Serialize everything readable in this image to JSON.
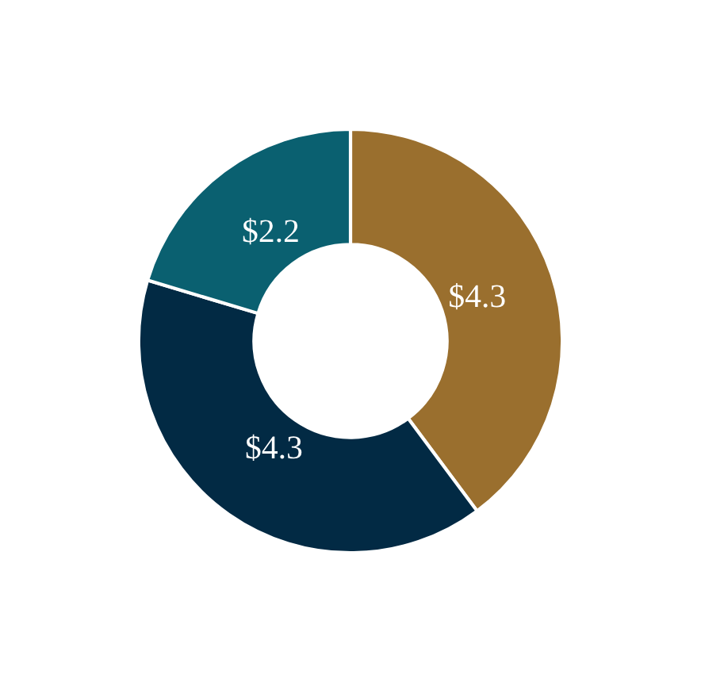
{
  "chart_data": {
    "type": "donut",
    "categories": [
      null,
      null,
      null
    ],
    "values": [
      4.3,
      4.3,
      2.2
    ],
    "colors": [
      "#9a6f2e",
      "#022a44",
      "#0a6070"
    ],
    "value_labels": [
      "$4.3",
      "$4.3",
      "$2.2"
    ]
  }
}
